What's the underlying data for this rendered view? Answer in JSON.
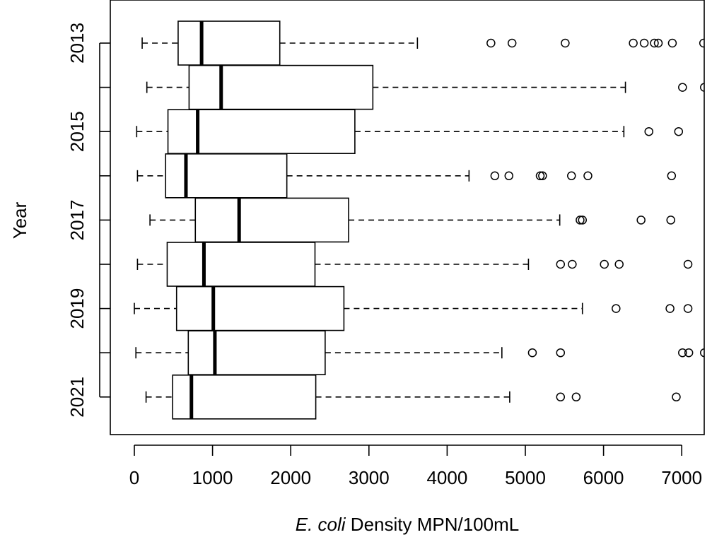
{
  "chart_data": {
    "type": "boxplot",
    "orientation": "horizontal",
    "xlabel_italic": "E. coli",
    "xlabel_rest": " Density MPN/100mL",
    "ylabel": "Year",
    "xlim": [
      -300,
      7300
    ],
    "xticks": [
      0,
      1000,
      2000,
      3000,
      4000,
      5000,
      6000,
      7000
    ],
    "ytick_labels": [
      "2013",
      "2015",
      "2017",
      "2019",
      "2021"
    ],
    "series": [
      {
        "year": "2013",
        "whisker_low": 100,
        "q1": 560,
        "median": 860,
        "q3": 1860,
        "whisker_high": 3620,
        "outliers": [
          4560,
          4830,
          5510,
          6380,
          6520,
          6650,
          6700,
          6880,
          7280
        ]
      },
      {
        "year": "2014",
        "whisker_low": 160,
        "q1": 700,
        "median": 1110,
        "q3": 3050,
        "whisker_high": 6280,
        "outliers": [
          7010,
          7290
        ]
      },
      {
        "year": "2015",
        "whisker_low": 30,
        "q1": 430,
        "median": 810,
        "q3": 2820,
        "whisker_high": 6260,
        "outliers": [
          6580,
          6960
        ]
      },
      {
        "year": "2016",
        "whisker_low": 40,
        "q1": 400,
        "median": 660,
        "q3": 1950,
        "whisker_high": 4280,
        "outliers": [
          4610,
          4790,
          5190,
          5220,
          5590,
          5800,
          6870
        ]
      },
      {
        "year": "2017",
        "whisker_low": 200,
        "q1": 780,
        "median": 1340,
        "q3": 2740,
        "whisker_high": 5440,
        "outliers": [
          5700,
          5730,
          6480,
          6860
        ]
      },
      {
        "year": "2018",
        "whisker_low": 40,
        "q1": 420,
        "median": 890,
        "q3": 2310,
        "whisker_high": 5040,
        "outliers": [
          5450,
          5600,
          6010,
          6200,
          7080
        ]
      },
      {
        "year": "2019",
        "whisker_low": 0,
        "q1": 540,
        "median": 1010,
        "q3": 2680,
        "whisker_high": 5730,
        "outliers": [
          6160,
          6850,
          7080
        ]
      },
      {
        "year": "2020",
        "whisker_low": 20,
        "q1": 690,
        "median": 1030,
        "q3": 2440,
        "whisker_high": 4700,
        "outliers": [
          5090,
          5450,
          7010,
          7090,
          7290
        ]
      },
      {
        "year": "2021",
        "whisker_low": 150,
        "q1": 490,
        "median": 730,
        "q3": 2320,
        "whisker_high": 4800,
        "outliers": [
          5450,
          5650,
          6930
        ]
      }
    ]
  }
}
